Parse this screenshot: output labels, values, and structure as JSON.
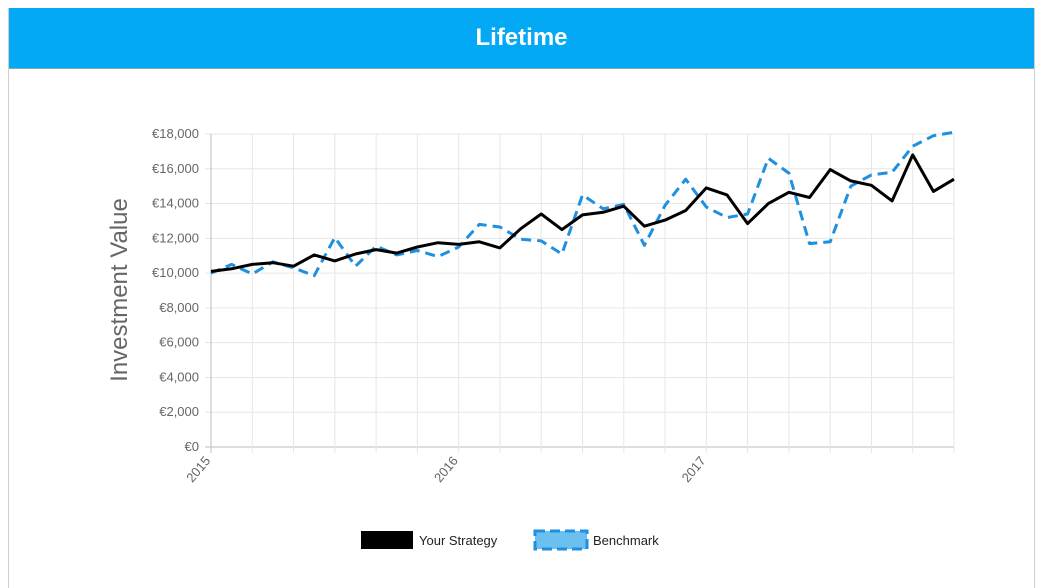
{
  "panel": {
    "title": "Lifetime"
  },
  "colors": {
    "header_bg": "#03a9f4",
    "strategy": "#000000",
    "benchmark": "#1e90e0"
  },
  "chart_data": {
    "type": "line",
    "ylabel": "Investment Value",
    "ylim": [
      0,
      18000
    ],
    "y_ticks": [
      {
        "value": 18000,
        "label": "€18,000"
      },
      {
        "value": 16000,
        "label": "€16,000"
      },
      {
        "value": 14000,
        "label": "€14,000"
      },
      {
        "value": 12000,
        "label": "€12,000"
      },
      {
        "value": 10000,
        "label": "€10,000"
      },
      {
        "value": 8000,
        "label": "€8,000"
      },
      {
        "value": 6000,
        "label": "€6,000"
      },
      {
        "value": 4000,
        "label": "€4,000"
      },
      {
        "value": 2000,
        "label": "€2,000"
      },
      {
        "value": 0,
        "label": "€0"
      }
    ],
    "x_ticks": [
      {
        "index": 0,
        "label": "2015"
      },
      {
        "index": 12,
        "label": "2016"
      },
      {
        "index": 24,
        "label": "2017"
      }
    ],
    "x": [
      "2015-01",
      "2015-02",
      "2015-03",
      "2015-04",
      "2015-05",
      "2015-06",
      "2015-07",
      "2015-08",
      "2015-09",
      "2015-10",
      "2015-11",
      "2015-12",
      "2016-01",
      "2016-02",
      "2016-03",
      "2016-04",
      "2016-05",
      "2016-06",
      "2016-07",
      "2016-08",
      "2016-09",
      "2016-10",
      "2016-11",
      "2016-12",
      "2017-01",
      "2017-02",
      "2017-03",
      "2017-04",
      "2017-05",
      "2017-06",
      "2017-07",
      "2017-08",
      "2017-09",
      "2017-10",
      "2017-11",
      "2017-12",
      "2018-01"
    ],
    "grid": true,
    "legend_position": "bottom",
    "series": [
      {
        "name": "Your Strategy",
        "style": "solid",
        "color": "#000000",
        "values": [
          10100,
          10250,
          10500,
          10600,
          10400,
          11050,
          10700,
          11100,
          11350,
          11150,
          11500,
          11750,
          11650,
          11800,
          11450,
          12550,
          13400,
          12500,
          13350,
          13500,
          13850,
          12700,
          13050,
          13600,
          14900,
          14500,
          12850,
          14000,
          14650,
          14350,
          15950,
          15300,
          15050,
          14150,
          16800,
          14700,
          15400
        ]
      },
      {
        "name": "Benchmark",
        "style": "dashed",
        "color": "#1e90e0",
        "values": [
          10000,
          10500,
          9950,
          10650,
          10300,
          9850,
          12050,
          10400,
          11550,
          11050,
          11300,
          10950,
          11500,
          12800,
          12650,
          11950,
          11850,
          11100,
          14500,
          13700,
          13950,
          11600,
          13900,
          15400,
          13800,
          13200,
          13400,
          16600,
          15750,
          11700,
          11800,
          15000,
          15650,
          15800,
          17300,
          17900,
          18100
        ]
      }
    ]
  }
}
